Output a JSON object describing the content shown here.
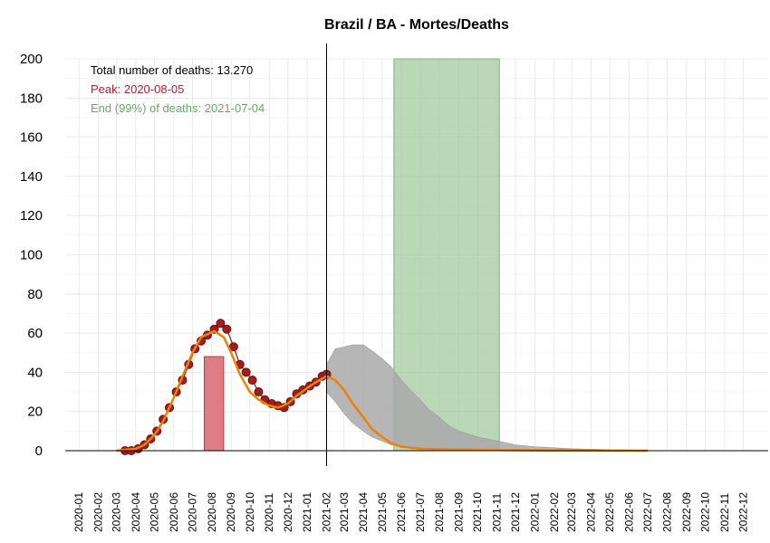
{
  "chart_data": {
    "type": "line",
    "title": "Brazil / BA - Mortes/Deaths",
    "xlabel": "",
    "ylabel": "",
    "ylim": [
      0,
      200
    ],
    "yticks": [
      0,
      20,
      40,
      60,
      80,
      100,
      120,
      140,
      160,
      180,
      200
    ],
    "xlim": [
      "2019-12-10",
      "2023-01-10"
    ],
    "xticks": [
      "2020-01",
      "2020-02",
      "2020-03",
      "2020-04",
      "2020-05",
      "2020-06",
      "2020-07",
      "2020-08",
      "2020-09",
      "2020-10",
      "2020-11",
      "2020-12",
      "2021-01",
      "2021-02",
      "2021-03",
      "2021-04",
      "2021-05",
      "2021-06",
      "2021-07",
      "2021-08",
      "2021-09",
      "2021-10",
      "2021-11",
      "2021-12",
      "2022-01",
      "2022-02",
      "2022-03",
      "2022-04",
      "2022-05",
      "2022-06",
      "2022-07",
      "2022-08",
      "2022-09",
      "2022-10",
      "2022-11",
      "2022-12"
    ],
    "grid": true,
    "current_date": "2021-02-01",
    "annotations": {
      "total": "Total number of deaths: 13.270",
      "peak": "Peak: 2020-08-05",
      "end": "End (99%) of deaths: 2021-07-04"
    },
    "peak_band": {
      "start": "2020-07-20",
      "end": "2020-08-20",
      "top": 48,
      "color": "#d9707a"
    },
    "end_band": {
      "start": "2021-05-20",
      "end": "2021-11-05",
      "top": 200,
      "color": "#9cc79a"
    },
    "observed_deaths": {
      "color": "#8b1a1a",
      "points": [
        [
          "2020-03-15",
          0
        ],
        [
          "2020-03-25",
          0
        ],
        [
          "2020-04-05",
          1
        ],
        [
          "2020-04-15",
          3
        ],
        [
          "2020-04-25",
          6
        ],
        [
          "2020-05-05",
          10
        ],
        [
          "2020-05-15",
          16
        ],
        [
          "2020-05-25",
          22
        ],
        [
          "2020-06-05",
          30
        ],
        [
          "2020-06-15",
          36
        ],
        [
          "2020-06-25",
          44
        ],
        [
          "2020-07-05",
          52
        ],
        [
          "2020-07-15",
          56
        ],
        [
          "2020-07-25",
          59
        ],
        [
          "2020-08-05",
          62
        ],
        [
          "2020-08-15",
          65
        ],
        [
          "2020-08-25",
          62
        ],
        [
          "2020-09-05",
          53
        ],
        [
          "2020-09-15",
          44
        ],
        [
          "2020-09-25",
          40
        ],
        [
          "2020-10-05",
          36
        ],
        [
          "2020-10-15",
          30
        ],
        [
          "2020-10-25",
          26
        ],
        [
          "2020-11-05",
          24
        ],
        [
          "2020-11-15",
          23
        ],
        [
          "2020-11-25",
          22
        ],
        [
          "2020-12-05",
          25
        ],
        [
          "2020-12-15",
          29
        ],
        [
          "2020-12-25",
          31
        ],
        [
          "2021-01-05",
          33
        ],
        [
          "2021-01-15",
          35
        ],
        [
          "2021-01-25",
          38
        ],
        [
          "2021-02-01",
          39
        ]
      ]
    },
    "fitted_curve": {
      "color": "#f08000",
      "points": [
        [
          "2020-03-01",
          0
        ],
        [
          "2020-04-01",
          1
        ],
        [
          "2020-04-15",
          3
        ],
        [
          "2020-05-01",
          8
        ],
        [
          "2020-05-15",
          15
        ],
        [
          "2020-06-01",
          27
        ],
        [
          "2020-06-15",
          38
        ],
        [
          "2020-07-01",
          50
        ],
        [
          "2020-07-15",
          58
        ],
        [
          "2020-08-05",
          61
        ],
        [
          "2020-08-20",
          58
        ],
        [
          "2020-09-01",
          50
        ],
        [
          "2020-09-15",
          39
        ],
        [
          "2020-10-01",
          30
        ],
        [
          "2020-10-15",
          26
        ],
        [
          "2020-11-01",
          23
        ],
        [
          "2020-11-15",
          22
        ],
        [
          "2020-12-01",
          24
        ],
        [
          "2020-12-15",
          28
        ],
        [
          "2021-01-01",
          32
        ],
        [
          "2021-01-15",
          35
        ],
        [
          "2021-02-01",
          38
        ],
        [
          "2021-02-15",
          36
        ],
        [
          "2021-03-01",
          31
        ],
        [
          "2021-03-15",
          24
        ],
        [
          "2021-04-01",
          17
        ],
        [
          "2021-04-15",
          11
        ],
        [
          "2021-05-01",
          7
        ],
        [
          "2021-05-15",
          4
        ],
        [
          "2021-06-01",
          2
        ],
        [
          "2021-07-01",
          1
        ],
        [
          "2021-09-01",
          0.5
        ],
        [
          "2022-01-01",
          0.2
        ],
        [
          "2022-07-01",
          0
        ]
      ]
    },
    "projection_envelope": {
      "color": "#a9a9a9",
      "upper": [
        [
          "2021-02-01",
          44
        ],
        [
          "2021-02-15",
          52
        ],
        [
          "2021-03-01",
          53
        ],
        [
          "2021-03-15",
          54
        ],
        [
          "2021-04-01",
          54
        ],
        [
          "2021-04-15",
          51
        ],
        [
          "2021-05-01",
          47
        ],
        [
          "2021-05-15",
          43
        ],
        [
          "2021-06-01",
          36
        ],
        [
          "2021-06-15",
          31
        ],
        [
          "2021-07-01",
          26
        ],
        [
          "2021-07-15",
          21
        ],
        [
          "2021-08-01",
          17
        ],
        [
          "2021-08-15",
          13
        ],
        [
          "2021-09-01",
          10
        ],
        [
          "2021-10-01",
          7
        ],
        [
          "2021-11-01",
          5
        ],
        [
          "2021-12-01",
          3
        ],
        [
          "2022-01-01",
          2
        ],
        [
          "2022-03-01",
          1
        ],
        [
          "2022-05-01",
          0.5
        ]
      ],
      "lower": [
        [
          "2021-02-01",
          30
        ],
        [
          "2021-02-15",
          25
        ],
        [
          "2021-03-01",
          19
        ],
        [
          "2021-03-15",
          14
        ],
        [
          "2021-04-01",
          10
        ],
        [
          "2021-04-15",
          7
        ],
        [
          "2021-05-01",
          5
        ],
        [
          "2021-05-15",
          3
        ],
        [
          "2021-06-01",
          2
        ],
        [
          "2021-07-01",
          1
        ],
        [
          "2021-09-01",
          0.5
        ],
        [
          "2022-01-01",
          0
        ],
        [
          "2022-05-01",
          0
        ]
      ]
    }
  }
}
